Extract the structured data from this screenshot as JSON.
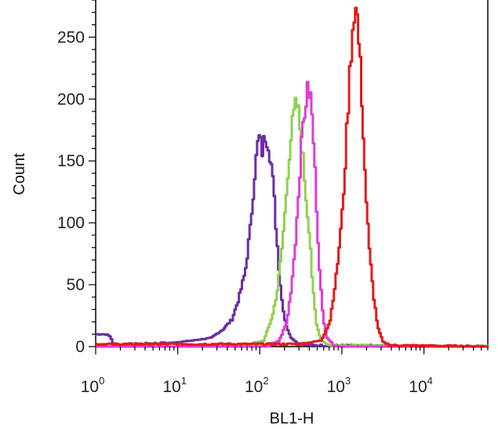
{
  "chart_data": {
    "type": "histogram",
    "xlabel": "BL1-H",
    "ylabel": "Count",
    "x_scale": "log10",
    "xlim": [
      1,
      60000
    ],
    "ylim": [
      0,
      280
    ],
    "x_ticks": [
      {
        "base": "10",
        "exp": "0",
        "value": 1
      },
      {
        "base": "10",
        "exp": "1",
        "value": 10
      },
      {
        "base": "10",
        "exp": "2",
        "value": 100
      },
      {
        "base": "10",
        "exp": "3",
        "value": 1000
      },
      {
        "base": "10",
        "exp": "4",
        "value": 10000
      }
    ],
    "y_ticks": [
      0,
      50,
      100,
      150,
      200,
      250
    ],
    "series": [
      {
        "color": "#6a2ea3",
        "points": [
          [
            1,
            10
          ],
          [
            1.3,
            10
          ],
          [
            1.5,
            8
          ],
          [
            1.6,
            1
          ],
          [
            3,
            2
          ],
          [
            8,
            3
          ],
          [
            15,
            5
          ],
          [
            25,
            7
          ],
          [
            35,
            14
          ],
          [
            45,
            22
          ],
          [
            55,
            40
          ],
          [
            65,
            60
          ],
          [
            75,
            95
          ],
          [
            85,
            140
          ],
          [
            95,
            170
          ],
          [
            105,
            158
          ],
          [
            115,
            172
          ],
          [
            125,
            165
          ],
          [
            135,
            148
          ],
          [
            145,
            125
          ],
          [
            155,
            95
          ],
          [
            165,
            70
          ],
          [
            180,
            40
          ],
          [
            200,
            20
          ],
          [
            230,
            8
          ],
          [
            280,
            3
          ],
          [
            400,
            1
          ],
          [
            60000,
            0
          ]
        ]
      },
      {
        "color": "#8fd14f",
        "points": [
          [
            1,
            0
          ],
          [
            60,
            0
          ],
          [
            110,
            5
          ],
          [
            140,
            25
          ],
          [
            160,
            45
          ],
          [
            180,
            75
          ],
          [
            200,
            110
          ],
          [
            220,
            150
          ],
          [
            240,
            175
          ],
          [
            260,
            190
          ],
          [
            275,
            196
          ],
          [
            290,
            188
          ],
          [
            310,
            170
          ],
          [
            340,
            140
          ],
          [
            370,
            110
          ],
          [
            400,
            90
          ],
          [
            430,
            50
          ],
          [
            480,
            18
          ],
          [
            550,
            5
          ],
          [
            700,
            1
          ],
          [
            60000,
            0
          ]
        ]
      },
      {
        "color": "#e23cd6",
        "points": [
          [
            1,
            0
          ],
          [
            120,
            0
          ],
          [
            170,
            5
          ],
          [
            210,
            20
          ],
          [
            240,
            50
          ],
          [
            270,
            90
          ],
          [
            300,
            140
          ],
          [
            330,
            180
          ],
          [
            360,
            200
          ],
          [
            385,
            208
          ],
          [
            410,
            200
          ],
          [
            440,
            170
          ],
          [
            470,
            130
          ],
          [
            500,
            90
          ],
          [
            540,
            50
          ],
          [
            580,
            22
          ],
          [
            640,
            8
          ],
          [
            750,
            2
          ],
          [
            900,
            0
          ],
          [
            60000,
            0
          ]
        ]
      },
      {
        "color": "#e41a1c",
        "points": [
          [
            1,
            2
          ],
          [
            20,
            2
          ],
          [
            300,
            2
          ],
          [
            550,
            5
          ],
          [
            700,
            20
          ],
          [
            850,
            60
          ],
          [
            1000,
            110
          ],
          [
            1100,
            160
          ],
          [
            1200,
            210
          ],
          [
            1300,
            250
          ],
          [
            1400,
            275
          ],
          [
            1500,
            268
          ],
          [
            1600,
            240
          ],
          [
            1750,
            190
          ],
          [
            1900,
            130
          ],
          [
            2100,
            80
          ],
          [
            2400,
            40
          ],
          [
            2700,
            15
          ],
          [
            3100,
            4
          ],
          [
            3800,
            1
          ],
          [
            60000,
            0
          ]
        ]
      }
    ]
  }
}
